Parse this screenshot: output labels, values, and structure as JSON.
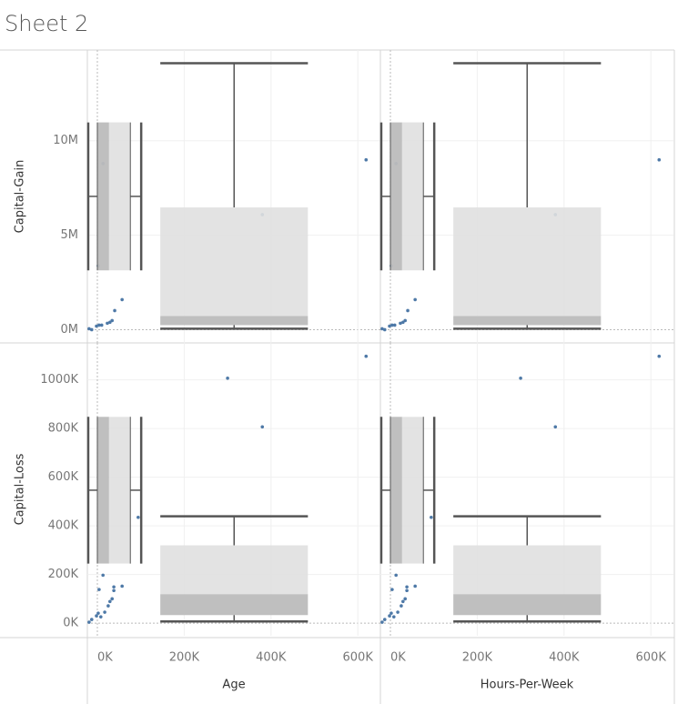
{
  "title": "Sheet 2",
  "chart_data": {
    "type": "scatter-matrix",
    "columns": [
      "Age",
      "Hours-Per-Week"
    ],
    "xlim": [
      -23000,
      652000
    ],
    "xticks": [
      {
        "value": 0,
        "label": "0K"
      },
      {
        "value": 200000,
        "label": "200K"
      },
      {
        "value": 400000,
        "label": "400K"
      },
      {
        "value": 600000,
        "label": "600K"
      }
    ],
    "rows": [
      {
        "label": "Capital-Gain",
        "ylim": [
          -700000,
          14800000
        ],
        "yticks": [
          {
            "value": 0,
            "label": "0M"
          },
          {
            "value": 5000000,
            "label": "5M"
          },
          {
            "value": 10000000,
            "label": "10M"
          }
        ]
      },
      {
        "label": "Capital-Loss",
        "ylim": [
          -52000,
          1152000
        ],
        "yticks": [
          {
            "value": 0,
            "label": "0K"
          },
          {
            "value": 200000,
            "label": "200K"
          },
          {
            "value": 400000,
            "label": "400K"
          },
          {
            "value": 600000,
            "label": "600K"
          },
          {
            "value": 800000,
            "label": "800K"
          },
          {
            "value": 1000000,
            "label": "1000K"
          }
        ]
      }
    ],
    "grid": true,
    "panels": [
      [
        {
          "color": "#4e79a7",
          "x": [
            -19000,
            -13000,
            -2000,
            4000,
            10000,
            23000,
            29000,
            34000,
            40000,
            57000,
            13000,
            2000,
            380000,
            619000
          ],
          "y": [
            50000,
            0,
            190000,
            240000,
            240000,
            340000,
            390000,
            480000,
            1010000,
            1590000,
            8790000,
            3380000,
            6090000,
            8990000
          ],
          "x_box": {
            "low": -21000,
            "q1": 0,
            "median": 27000,
            "q3": 76000,
            "high": 101000,
            "band": [
              3140000,
              10970000
            ]
          },
          "y_box": {
            "low": 50000,
            "q1": 240000,
            "median": 720000,
            "q3": 6470000,
            "high": 14100000,
            "band": [
              145000,
              485000
            ]
          }
        },
        {
          "color": "#4e79a7",
          "x": [
            -19000,
            -13000,
            -2000,
            4000,
            10000,
            23000,
            29000,
            34000,
            40000,
            57000,
            13000,
            2000,
            380000,
            619000
          ],
          "y": [
            50000,
            0,
            190000,
            240000,
            240000,
            340000,
            390000,
            480000,
            1010000,
            1590000,
            8790000,
            3380000,
            6090000,
            8990000
          ],
          "x_box": {
            "low": -21000,
            "q1": 0,
            "median": 27000,
            "q3": 76000,
            "high": 101000,
            "band": [
              3140000,
              10970000
            ]
          },
          "y_box": {
            "low": 50000,
            "q1": 240000,
            "median": 720000,
            "q3": 6470000,
            "high": 14100000,
            "band": [
              145000,
              485000
            ]
          }
        }
      ],
      [
        {
          "color": "#4e79a7",
          "x": [
            -19000,
            -13000,
            -2000,
            2000,
            8000,
            17000,
            25000,
            29000,
            34000,
            38000,
            38000,
            57000,
            13000,
            4000,
            300000,
            380000,
            619000,
            94000
          ],
          "y": [
            4000,
            15000,
            30000,
            41000,
            26000,
            45000,
            71000,
            89000,
            100000,
            134000,
            149000,
            152000,
            197000,
            138000,
            1007000,
            807000,
            1097000,
            435000
          ],
          "x_box": {
            "low": -21000,
            "q1": 0,
            "median": 27000,
            "q3": 76000,
            "high": 101000,
            "band": [
              245000,
              848000
            ]
          },
          "y_box": {
            "low": 7000,
            "q1": 33000,
            "median": 119000,
            "q3": 320000,
            "high": 439000,
            "band": [
              145000,
              485000
            ]
          }
        },
        {
          "color": "#4e79a7",
          "x": [
            -19000,
            -13000,
            -2000,
            2000,
            8000,
            17000,
            25000,
            29000,
            34000,
            38000,
            38000,
            57000,
            13000,
            4000,
            300000,
            380000,
            619000,
            94000
          ],
          "y": [
            4000,
            15000,
            30000,
            41000,
            26000,
            45000,
            71000,
            89000,
            100000,
            134000,
            149000,
            152000,
            197000,
            138000,
            1007000,
            807000,
            1097000,
            435000
          ],
          "x_box": {
            "low": -21000,
            "q1": 0,
            "median": 27000,
            "q3": 76000,
            "high": 101000,
            "band": [
              245000,
              848000
            ]
          },
          "y_box": {
            "low": 7000,
            "q1": 33000,
            "median": 119000,
            "q3": 320000,
            "high": 439000,
            "band": [
              145000,
              485000
            ]
          }
        }
      ]
    ]
  }
}
